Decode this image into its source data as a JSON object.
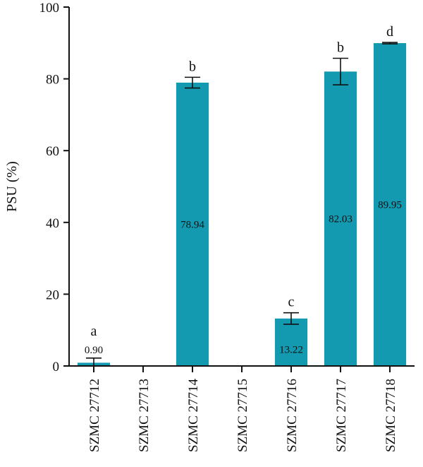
{
  "chart_data": {
    "type": "bar",
    "title": "",
    "xlabel": "",
    "ylabel": "PSU (%)",
    "ylim": [
      0,
      100
    ],
    "yticks": [
      0,
      20,
      40,
      60,
      80,
      100
    ],
    "grid": false,
    "legend": "none",
    "bar_color": "#1399b0",
    "categories": [
      "SZMC 27712",
      "SZMC 27713",
      "SZMC 27714",
      "SZMC 27715",
      "SZMC 27716",
      "SZMC 27717",
      "SZMC 27718"
    ],
    "values": [
      0.9,
      0,
      78.94,
      0,
      13.22,
      82.03,
      89.95
    ],
    "errors": [
      1.3,
      null,
      1.5,
      null,
      1.6,
      3.7,
      0.2
    ],
    "data_labels": [
      "0.90",
      "",
      "78.94",
      "",
      "13.22",
      "82.03",
      "89.95"
    ],
    "significance_letters": [
      "a",
      "",
      "b",
      "",
      "c",
      "b",
      "d"
    ]
  }
}
